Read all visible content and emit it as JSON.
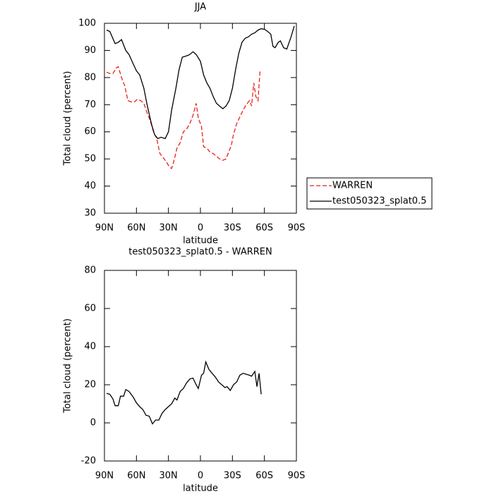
{
  "chart_data": [
    {
      "type": "line",
      "title": "JJA",
      "xlabel": "latitude",
      "ylabel": "Total cloud (percent)",
      "xlim": [
        90,
        -90
      ],
      "xticks": [
        {
          "value": 90,
          "label": "90N"
        },
        {
          "value": 60,
          "label": "60N"
        },
        {
          "value": 30,
          "label": "30N"
        },
        0,
        {
          "value": -30,
          "label": "30S"
        },
        {
          "value": -60,
          "label": "60S"
        },
        {
          "value": -90,
          "label": "90S"
        }
      ],
      "ylim": [
        30,
        100
      ],
      "yticks": [
        30,
        40,
        50,
        60,
        70,
        80,
        90,
        100
      ],
      "legend": "outside-right",
      "series": [
        {
          "name": "WARREN",
          "color": "#e8211f",
          "dashed": true,
          "x": [
            88,
            85,
            82,
            79,
            77,
            74,
            71,
            68,
            65,
            62,
            59,
            56,
            53,
            50,
            47,
            44,
            41,
            38,
            35,
            32,
            29,
            27,
            25,
            22,
            19,
            16,
            13,
            10,
            7,
            4,
            2,
            -1,
            -3,
            -6,
            -9,
            -12,
            -15,
            -18,
            -21,
            -24,
            -27,
            -29,
            -31,
            -34,
            -37,
            -40,
            -43,
            -46,
            -48,
            -50,
            -52,
            -54,
            -56
          ],
          "values": [
            82,
            81.5,
            81.5,
            83.5,
            84,
            80,
            77,
            71.5,
            71,
            71,
            72,
            71.5,
            70.5,
            67,
            64,
            60,
            57.5,
            52,
            50.5,
            49,
            47,
            46.5,
            49,
            54,
            56,
            60,
            61,
            63,
            66,
            70.5,
            65,
            62,
            54.5,
            54,
            52.5,
            52,
            51,
            50,
            49.5,
            50,
            53,
            55,
            59,
            63,
            65.5,
            68,
            70,
            71.5,
            69.5,
            78,
            73,
            71.5,
            83
          ]
        },
        {
          "name": "test050323_splat0.5",
          "color": "#000000",
          "dashed": false,
          "x": [
            88,
            85,
            80,
            77,
            74,
            70,
            67,
            63,
            60,
            57,
            53,
            50,
            46,
            43,
            40,
            37,
            33,
            30,
            27,
            23,
            20,
            17,
            13,
            10,
            7,
            4,
            0,
            -3,
            -6,
            -9,
            -12,
            -15,
            -18,
            -21,
            -24,
            -27,
            -30,
            -33,
            -36,
            -39,
            -42,
            -45,
            -48,
            -51,
            -54,
            -57,
            -60,
            -63,
            -66,
            -68,
            -70,
            -73,
            -75,
            -78,
            -81,
            -85,
            -88
          ],
          "values": [
            97.5,
            97,
            92.5,
            93,
            94,
            90,
            88.5,
            85,
            82.5,
            81,
            76,
            70,
            63,
            59,
            57.5,
            58,
            57.5,
            60,
            68,
            76,
            83,
            87.5,
            88,
            88.5,
            89.5,
            88.5,
            86,
            81,
            78,
            76,
            73,
            70.5,
            69.5,
            68.5,
            69.5,
            71.5,
            76,
            83,
            89,
            93,
            94.5,
            95,
            96,
            96.5,
            97.5,
            98,
            97.8,
            97,
            96,
            91.5,
            91,
            93,
            93.5,
            91,
            90.5,
            95,
            99
          ]
        }
      ]
    },
    {
      "type": "line",
      "title": "test050323_splat0.5 - WARREN",
      "xlabel": "latitude",
      "ylabel": "Total cloud (percent)",
      "xlim": [
        90,
        -90
      ],
      "xticks": [
        {
          "value": 90,
          "label": "90N"
        },
        {
          "value": 60,
          "label": "60N"
        },
        {
          "value": 30,
          "label": "30N"
        },
        0,
        {
          "value": -30,
          "label": "30S"
        },
        {
          "value": -60,
          "label": "60S"
        },
        {
          "value": -90,
          "label": "90S"
        }
      ],
      "ylim": [
        -20,
        80
      ],
      "yticks": [
        -20,
        0,
        20,
        40,
        60,
        80
      ],
      "series": [
        {
          "color": "#000000",
          "dashed": false,
          "x": [
            88,
            85,
            82,
            80,
            77,
            75,
            72,
            70,
            67,
            63,
            60,
            57,
            54,
            51,
            48,
            45,
            42,
            39,
            36,
            33,
            30,
            27,
            24,
            22,
            19,
            16,
            13,
            10,
            7,
            4,
            2,
            -1,
            -3,
            -5,
            -8,
            -11,
            -14,
            -17,
            -20,
            -23,
            -25,
            -28,
            -31,
            -34,
            -37,
            -40,
            -43,
            -46,
            -48,
            -51,
            -53,
            -55,
            -57
          ],
          "values": [
            15.5,
            15,
            12.5,
            9,
            9,
            14,
            14,
            17.5,
            16.5,
            13.5,
            10.5,
            8.5,
            7,
            4,
            3.5,
            -0.5,
            1.5,
            1.5,
            5,
            7,
            8.5,
            10,
            13,
            12,
            16.5,
            18,
            21,
            23,
            23.5,
            20,
            18,
            25,
            26,
            32,
            28,
            26,
            24,
            21.5,
            20,
            18.5,
            19,
            17,
            20,
            21.5,
            25,
            26,
            25.5,
            25,
            24.5,
            27,
            19,
            26,
            15
          ]
        }
      ]
    }
  ]
}
